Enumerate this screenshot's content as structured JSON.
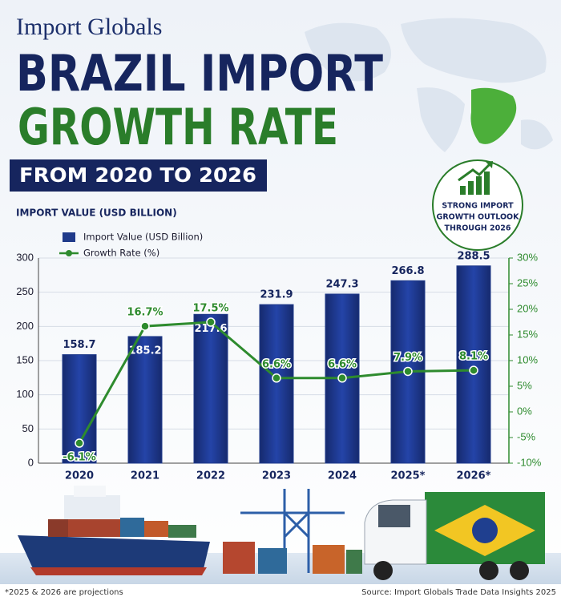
{
  "logo": "Import Globals",
  "title": [
    "BRAZIL IMPORT",
    "GROWTH RATE"
  ],
  "subtitle": "FROM 2020 TO 2026",
  "badge": [
    "STRONG IMPORT",
    "GROWTH OUTLOOK",
    "THROUGH 2026"
  ],
  "footnote": "*2025 & 2026 are projections",
  "source": "Source: Import Globals Trade Data Insights 2025",
  "chart_data": {
    "type": "bar",
    "y_label": "IMPORT VALUE (USD BILLION)",
    "categories": [
      "2020",
      "2021",
      "2022",
      "2023",
      "2024",
      "2025*",
      "2026*"
    ],
    "series": [
      {
        "name": "Import Value (USD Billion)",
        "type": "bar",
        "color": "#1f3a8a",
        "values": [
          158.7,
          185.2,
          217.6,
          231.9,
          247.3,
          266.8,
          288.5
        ]
      },
      {
        "name": "Growth Rate (%)",
        "type": "line",
        "axis": "y2",
        "color": "#2e8b2e",
        "values": [
          -6.1,
          16.7,
          17.5,
          6.6,
          6.6,
          7.9,
          8.1
        ],
        "value_labels": [
          "-6.1%",
          "16.7%",
          "17.5%",
          "6.6%",
          "6.6%",
          "7.9%",
          "8.1%"
        ]
      }
    ],
    "ylim": [
      0,
      300
    ],
    "yticks": [
      0,
      50,
      100,
      150,
      200,
      250,
      300
    ],
    "y2lim": [
      -10,
      30
    ],
    "y2ticks": [
      {
        "value": -10,
        "label": "-10%"
      },
      {
        "value": -5,
        "label": "-5%"
      },
      {
        "value": 0,
        "label": "0%"
      },
      {
        "value": 5,
        "label": "5%"
      },
      {
        "value": 10,
        "label": "10%"
      },
      {
        "value": 15,
        "label": "15%"
      },
      {
        "value": 20,
        "label": "20%"
      },
      {
        "value": 25,
        "label": "25%"
      },
      {
        "value": 30,
        "label": "30%"
      }
    ],
    "grid": true,
    "legend": "top-left"
  }
}
